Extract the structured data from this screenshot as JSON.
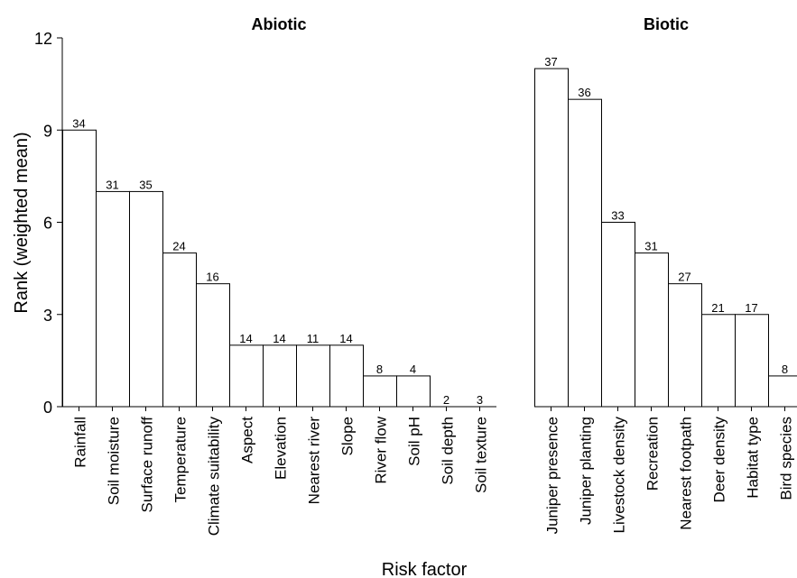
{
  "chart_data": [
    {
      "type": "bar",
      "title": "Abiotic",
      "xlabel": "Risk factor",
      "ylabel": "Rank (weighted mean)",
      "ylim": [
        0,
        12
      ],
      "yticks": [
        0,
        3,
        6,
        9,
        12
      ],
      "grid": false,
      "categories": [
        "Rainfall",
        "Soil moisture",
        "Surface runoff",
        "Temperature",
        "Climate suitability",
        "Aspect",
        "Elevation",
        "Nearest river",
        "Slope",
        "River flow",
        "Soil pH",
        "Soil depth",
        "Soil texture"
      ],
      "values": [
        9,
        7,
        7,
        5,
        4,
        2,
        2,
        2,
        2,
        1,
        1,
        0,
        0
      ],
      "bar_labels": [
        "34",
        "31",
        "35",
        "24",
        "16",
        "14",
        "14",
        "11",
        "14",
        "8",
        "4",
        "2",
        "3"
      ]
    },
    {
      "type": "bar",
      "title": "Biotic",
      "ylim": [
        0,
        12
      ],
      "grid": false,
      "categories": [
        "Juniper presence",
        "Juniper planting",
        "Livestock density",
        "Recreation",
        "Nearest footpath",
        "Deer density",
        "Habitat type",
        "Bird species"
      ],
      "values": [
        11,
        10,
        6,
        5,
        4,
        3,
        3,
        1
      ],
      "bar_labels": [
        "37",
        "36",
        "33",
        "31",
        "27",
        "21",
        "17",
        "8"
      ]
    }
  ]
}
